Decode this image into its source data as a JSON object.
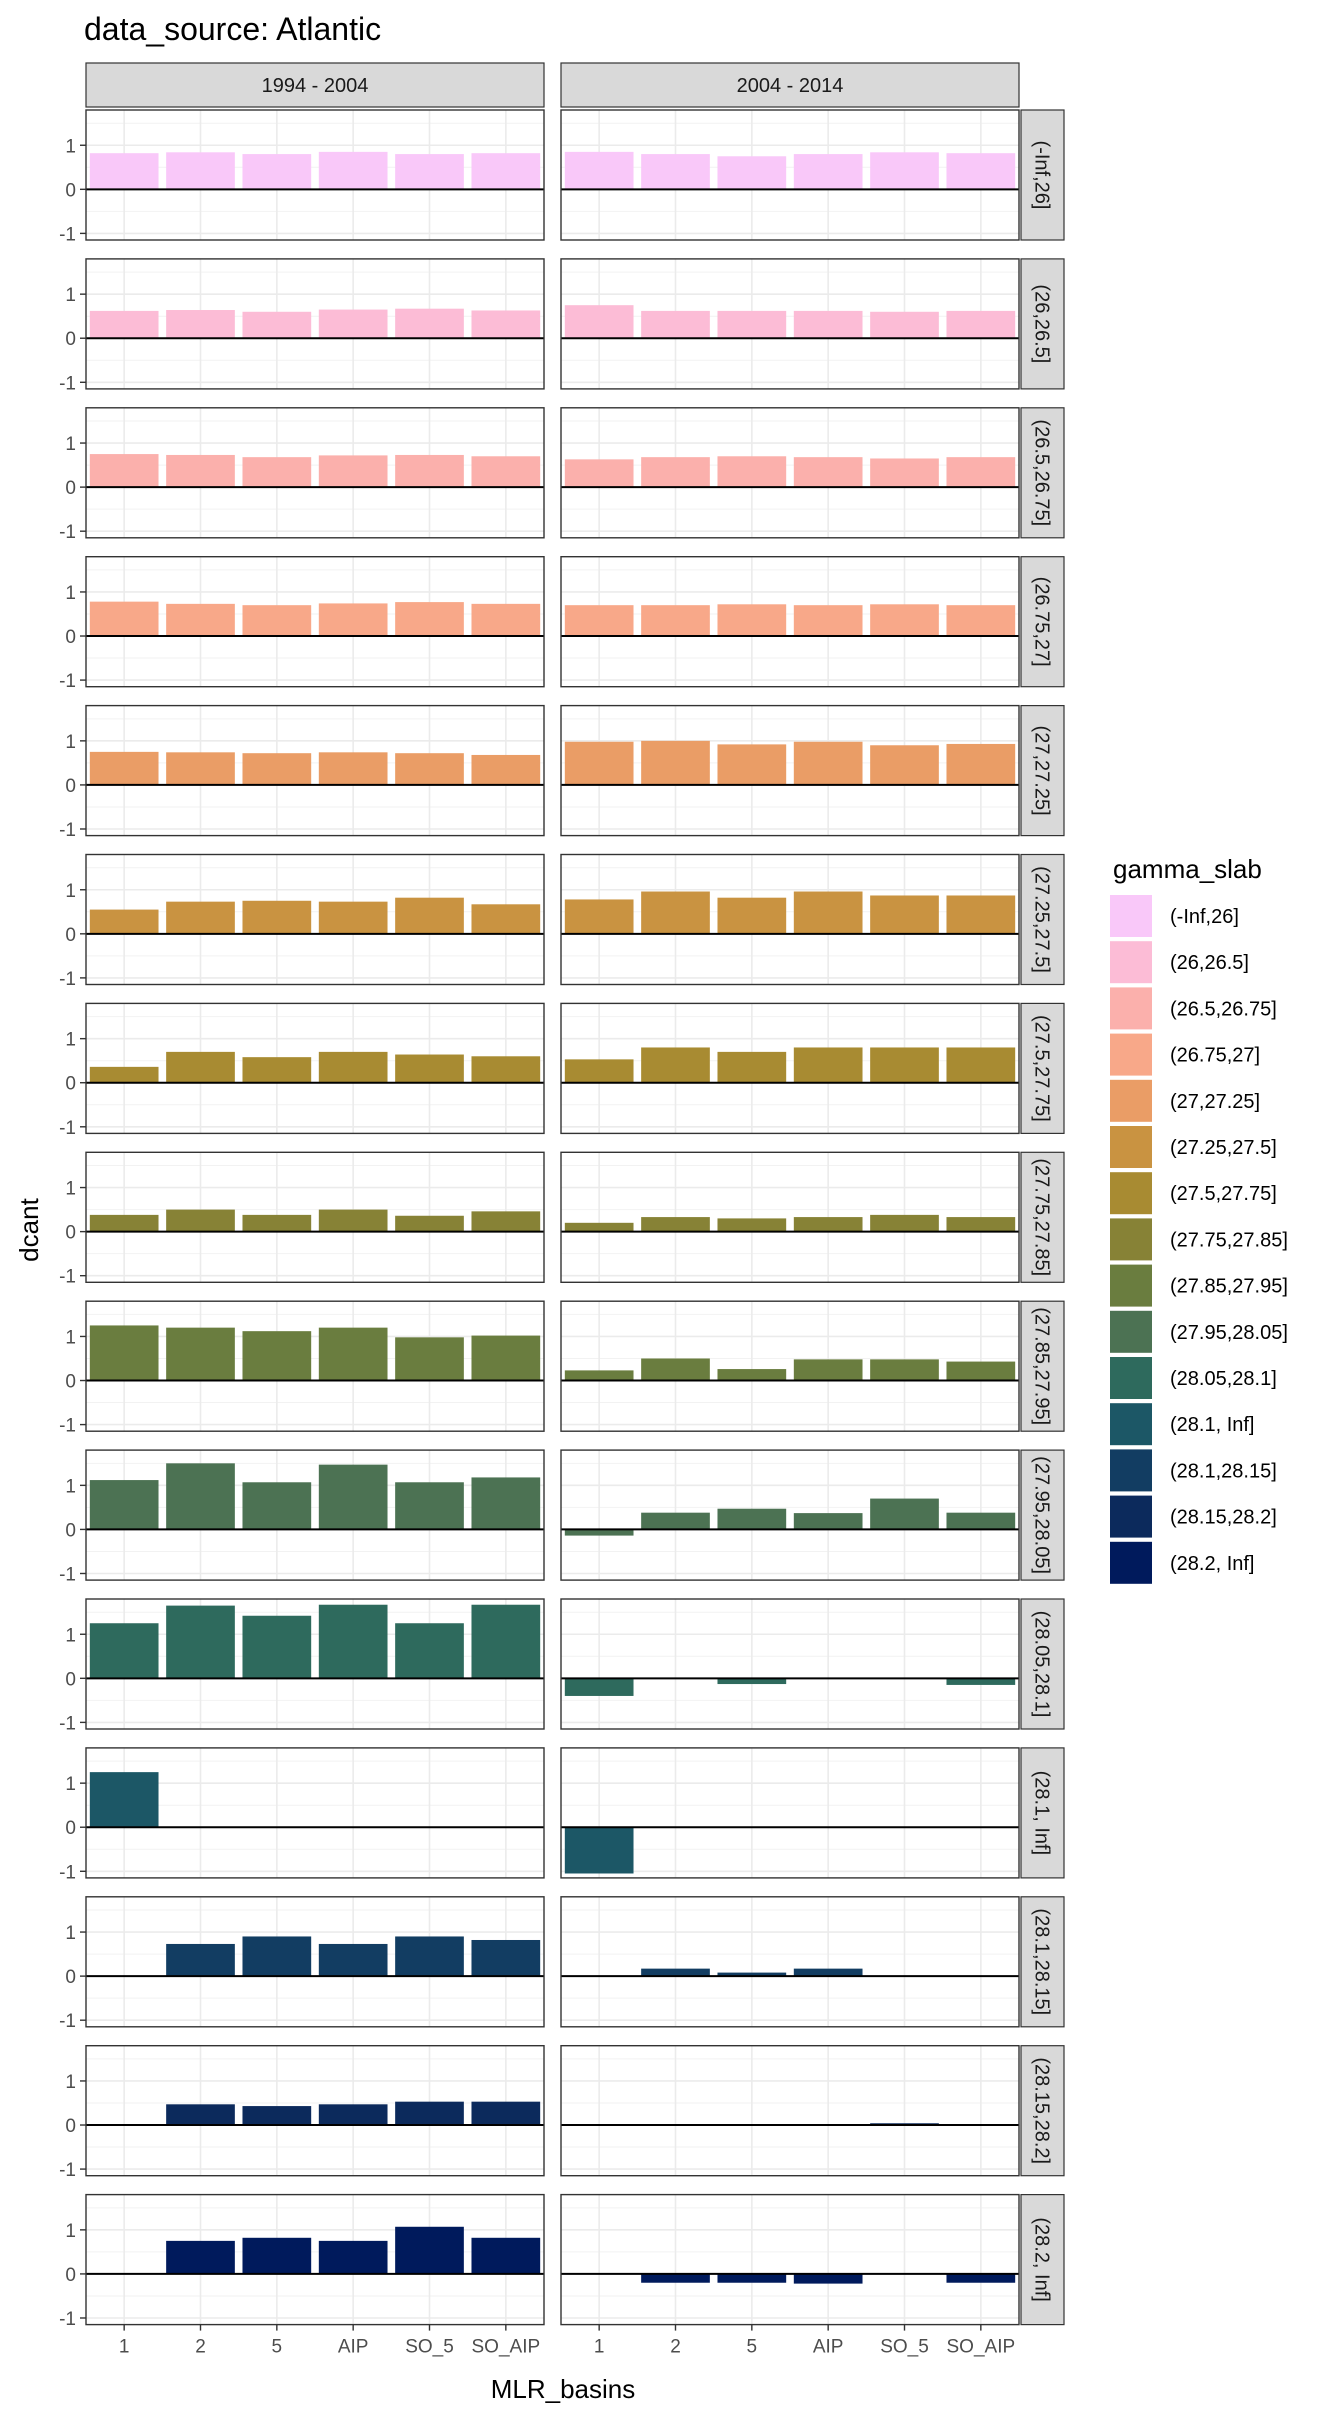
{
  "chart_data": {
    "type": "bar",
    "title": "data_source: Atlantic",
    "xlabel": "MLR_basins",
    "ylabel": "dcant",
    "categories": [
      "1",
      "2",
      "5",
      "AIP",
      "SO_5",
      "SO_AIP"
    ],
    "yticks": [
      "1",
      "0",
      "-1"
    ],
    "ylim": [
      -1.15,
      1.8
    ],
    "grid": true,
    "legend": {
      "title": "gamma_slab",
      "position": "right",
      "entries": [
        {
          "label": "(-Inf,26]",
          "color": "#F9C8F9"
        },
        {
          "label": "(26,26.5]",
          "color": "#FCBCD6"
        },
        {
          "label": "(26.5,26.75]",
          "color": "#FBB0AC"
        },
        {
          "label": "(26.75,27]",
          "color": "#F8A889"
        },
        {
          "label": "(27,27.25]",
          "color": "#EA9D66"
        },
        {
          "label": "(27.25,27.5]",
          "color": "#C99341"
        },
        {
          "label": "(27.5,27.75]",
          "color": "#A88B32"
        },
        {
          "label": "(27.75,27.85]",
          "color": "#878236"
        },
        {
          "label": "(27.85,27.95]",
          "color": "#6A7D3F"
        },
        {
          "label": "(27.95,28.05]",
          "color": "#4C7253"
        },
        {
          "label": "(28.05,28.1]",
          "color": "#2E6A5D"
        },
        {
          "label": "(28.1, Inf]",
          "color": "#1C5766"
        },
        {
          "label": "(28.1,28.15]",
          "color": "#123D62"
        },
        {
          "label": "(28.15,28.2]",
          "color": "#0C2A5C"
        },
        {
          "label": "(28.2, Inf]",
          "color": "#001A5C"
        }
      ]
    },
    "columns": [
      "1994 - 2004",
      "2004 - 2014"
    ],
    "rows": [
      {
        "label": "(-Inf,26]",
        "color": "#F9C8F9",
        "values": [
          [
            0.82,
            0.84,
            0.8,
            0.85,
            0.8,
            0.82
          ],
          [
            0.85,
            0.8,
            0.75,
            0.8,
            0.84,
            0.82
          ]
        ]
      },
      {
        "label": "(26,26.5]",
        "color": "#FCBCD6",
        "values": [
          [
            0.62,
            0.64,
            0.6,
            0.65,
            0.67,
            0.63
          ],
          [
            0.75,
            0.62,
            0.62,
            0.62,
            0.6,
            0.62
          ]
        ]
      },
      {
        "label": "(26.5,26.75]",
        "color": "#FBB0AC",
        "values": [
          [
            0.75,
            0.73,
            0.68,
            0.72,
            0.73,
            0.7
          ],
          [
            0.63,
            0.68,
            0.7,
            0.68,
            0.65,
            0.68
          ]
        ]
      },
      {
        "label": "(26.75,27]",
        "color": "#F8A889",
        "values": [
          [
            0.78,
            0.73,
            0.7,
            0.74,
            0.77,
            0.73
          ],
          [
            0.7,
            0.7,
            0.72,
            0.7,
            0.72,
            0.7
          ]
        ]
      },
      {
        "label": "(27,27.25]",
        "color": "#EA9D66",
        "values": [
          [
            0.75,
            0.74,
            0.72,
            0.74,
            0.72,
            0.68
          ],
          [
            0.98,
            1.0,
            0.92,
            0.98,
            0.9,
            0.93
          ]
        ]
      },
      {
        "label": "(27.25,27.5]",
        "color": "#C99341",
        "values": [
          [
            0.55,
            0.73,
            0.75,
            0.73,
            0.82,
            0.67
          ],
          [
            0.78,
            0.96,
            0.82,
            0.96,
            0.87,
            0.87
          ]
        ]
      },
      {
        "label": "(27.5,27.75]",
        "color": "#A88B32",
        "values": [
          [
            0.36,
            0.7,
            0.58,
            0.7,
            0.64,
            0.6
          ],
          [
            0.53,
            0.8,
            0.7,
            0.8,
            0.8,
            0.8
          ]
        ]
      },
      {
        "label": "(27.75,27.85]",
        "color": "#878236",
        "values": [
          [
            0.38,
            0.5,
            0.38,
            0.5,
            0.36,
            0.46
          ],
          [
            0.2,
            0.33,
            0.3,
            0.33,
            0.38,
            0.33
          ]
        ]
      },
      {
        "label": "(27.85,27.95]",
        "color": "#6A7D3F",
        "values": [
          [
            1.25,
            1.2,
            1.12,
            1.2,
            0.98,
            1.02
          ],
          [
            0.23,
            0.5,
            0.26,
            0.48,
            0.48,
            0.43
          ]
        ]
      },
      {
        "label": "(27.95,28.05]",
        "color": "#4C7253",
        "values": [
          [
            1.12,
            1.5,
            1.07,
            1.47,
            1.07,
            1.18
          ],
          [
            -0.14,
            0.38,
            0.47,
            0.37,
            0.7,
            0.38
          ]
        ]
      },
      {
        "label": "(28.05,28.1]",
        "color": "#2E6A5D",
        "values": [
          [
            1.25,
            1.65,
            1.42,
            1.67,
            1.25,
            1.67
          ],
          [
            -0.4,
            0.0,
            -0.13,
            0.0,
            0.0,
            -0.15
          ]
        ]
      },
      {
        "label": "(28.1, Inf]",
        "color": "#1C5766",
        "values": [
          [
            1.25,
            null,
            null,
            null,
            null,
            null
          ],
          [
            -1.05,
            null,
            null,
            null,
            null,
            null
          ]
        ]
      },
      {
        "label": "(28.1,28.15]",
        "color": "#123D62",
        "values": [
          [
            null,
            0.73,
            0.9,
            0.73,
            0.9,
            0.82
          ],
          [
            null,
            0.17,
            0.08,
            0.17,
            0.0,
            0.0
          ]
        ]
      },
      {
        "label": "(28.15,28.2]",
        "color": "#0C2A5C",
        "values": [
          [
            null,
            0.47,
            0.43,
            0.47,
            0.53,
            0.53
          ],
          [
            null,
            0.0,
            0.0,
            0.0,
            0.04,
            0.0
          ]
        ]
      },
      {
        "label": "(28.2, Inf]",
        "color": "#001A5C",
        "values": [
          [
            null,
            0.75,
            0.82,
            0.75,
            1.07,
            0.82
          ],
          [
            null,
            -0.2,
            -0.2,
            -0.22,
            0.0,
            -0.2
          ]
        ]
      }
    ]
  }
}
